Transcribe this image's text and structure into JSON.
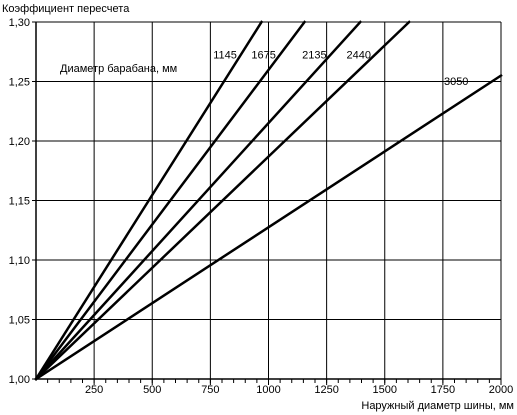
{
  "chart_data": {
    "type": "line",
    "title": "",
    "ylabel": "Коэффициент пересчета",
    "xlabel": "Наружный диаметр шины, мм",
    "xlim": [
      0,
      2000
    ],
    "ylim": [
      1.0,
      1.3
    ],
    "x_ticks": [
      250,
      500,
      750,
      1000,
      1250,
      1500,
      1750,
      2000
    ],
    "x_tick_labels": [
      "250",
      "500",
      "750",
      "1000",
      "1250",
      "1500",
      "1750",
      "2000"
    ],
    "x_minor_step": 50,
    "y_ticks": [
      1.0,
      1.05,
      1.1,
      1.15,
      1.2,
      1.25,
      1.3
    ],
    "y_tick_labels": [
      "1,00",
      "1,05",
      "1,10",
      "1,15",
      "1,20",
      "1,25",
      "1,30"
    ],
    "grid": true,
    "legend_title": "Диаметр барабана, мм",
    "series": [
      {
        "name": "1145",
        "x": [
          0,
          970
        ],
        "y": [
          1.0,
          1.3
        ]
      },
      {
        "name": "1675",
        "x": [
          0,
          1155
        ],
        "y": [
          1.0,
          1.3
        ]
      },
      {
        "name": "2135",
        "x": [
          0,
          1395
        ],
        "y": [
          1.0,
          1.3
        ]
      },
      {
        "name": "2440",
        "x": [
          0,
          1605
        ],
        "y": [
          1.0,
          1.3
        ]
      },
      {
        "name": "3050",
        "x": [
          0,
          2000
        ],
        "y": [
          1.0,
          1.255
        ]
      }
    ],
    "line_color": "#000000"
  }
}
